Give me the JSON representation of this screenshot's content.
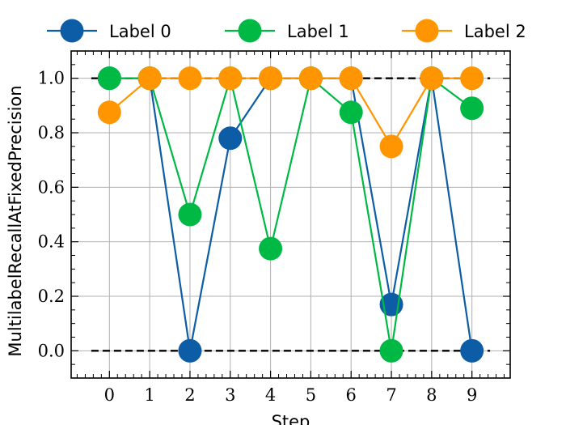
{
  "chart_data": {
    "type": "line",
    "xlabel": "Step",
    "ylabel": "MultilabelRecallAtFixedPrecision",
    "x": [
      0,
      1,
      2,
      3,
      4,
      5,
      6,
      7,
      8,
      9
    ],
    "xlim": [
      -0.95,
      9.95
    ],
    "ylim": [
      -0.1,
      1.1
    ],
    "xticks": [
      "0",
      "1",
      "2",
      "3",
      "4",
      "5",
      "6",
      "7",
      "8",
      "9"
    ],
    "yticks": [
      "0.0",
      "0.2",
      "0.4",
      "0.6",
      "0.8",
      "1.0"
    ],
    "grid": true,
    "legend_placement": "top, outside plot",
    "reference_lines": [
      {
        "y": 1.0,
        "style": "dashed",
        "color": "#000000"
      },
      {
        "y": 0.0,
        "style": "dashed",
        "color": "#000000"
      }
    ],
    "series": [
      {
        "name": "Label 0",
        "color": "#0C5DA5",
        "values": [
          1.0,
          1.0,
          0.0,
          0.78,
          1.0,
          1.0,
          1.0,
          0.17,
          1.0,
          0.0
        ]
      },
      {
        "name": "Label 1",
        "color": "#00B945",
        "values": [
          1.0,
          1.0,
          0.5,
          1.0,
          0.375,
          1.0,
          0.875,
          0.0,
          1.0,
          0.89
        ]
      },
      {
        "name": "Label 2",
        "color": "#FF9500",
        "values": [
          0.875,
          1.0,
          1.0,
          1.0,
          1.0,
          1.0,
          1.0,
          0.75,
          1.0,
          1.0
        ]
      }
    ]
  }
}
